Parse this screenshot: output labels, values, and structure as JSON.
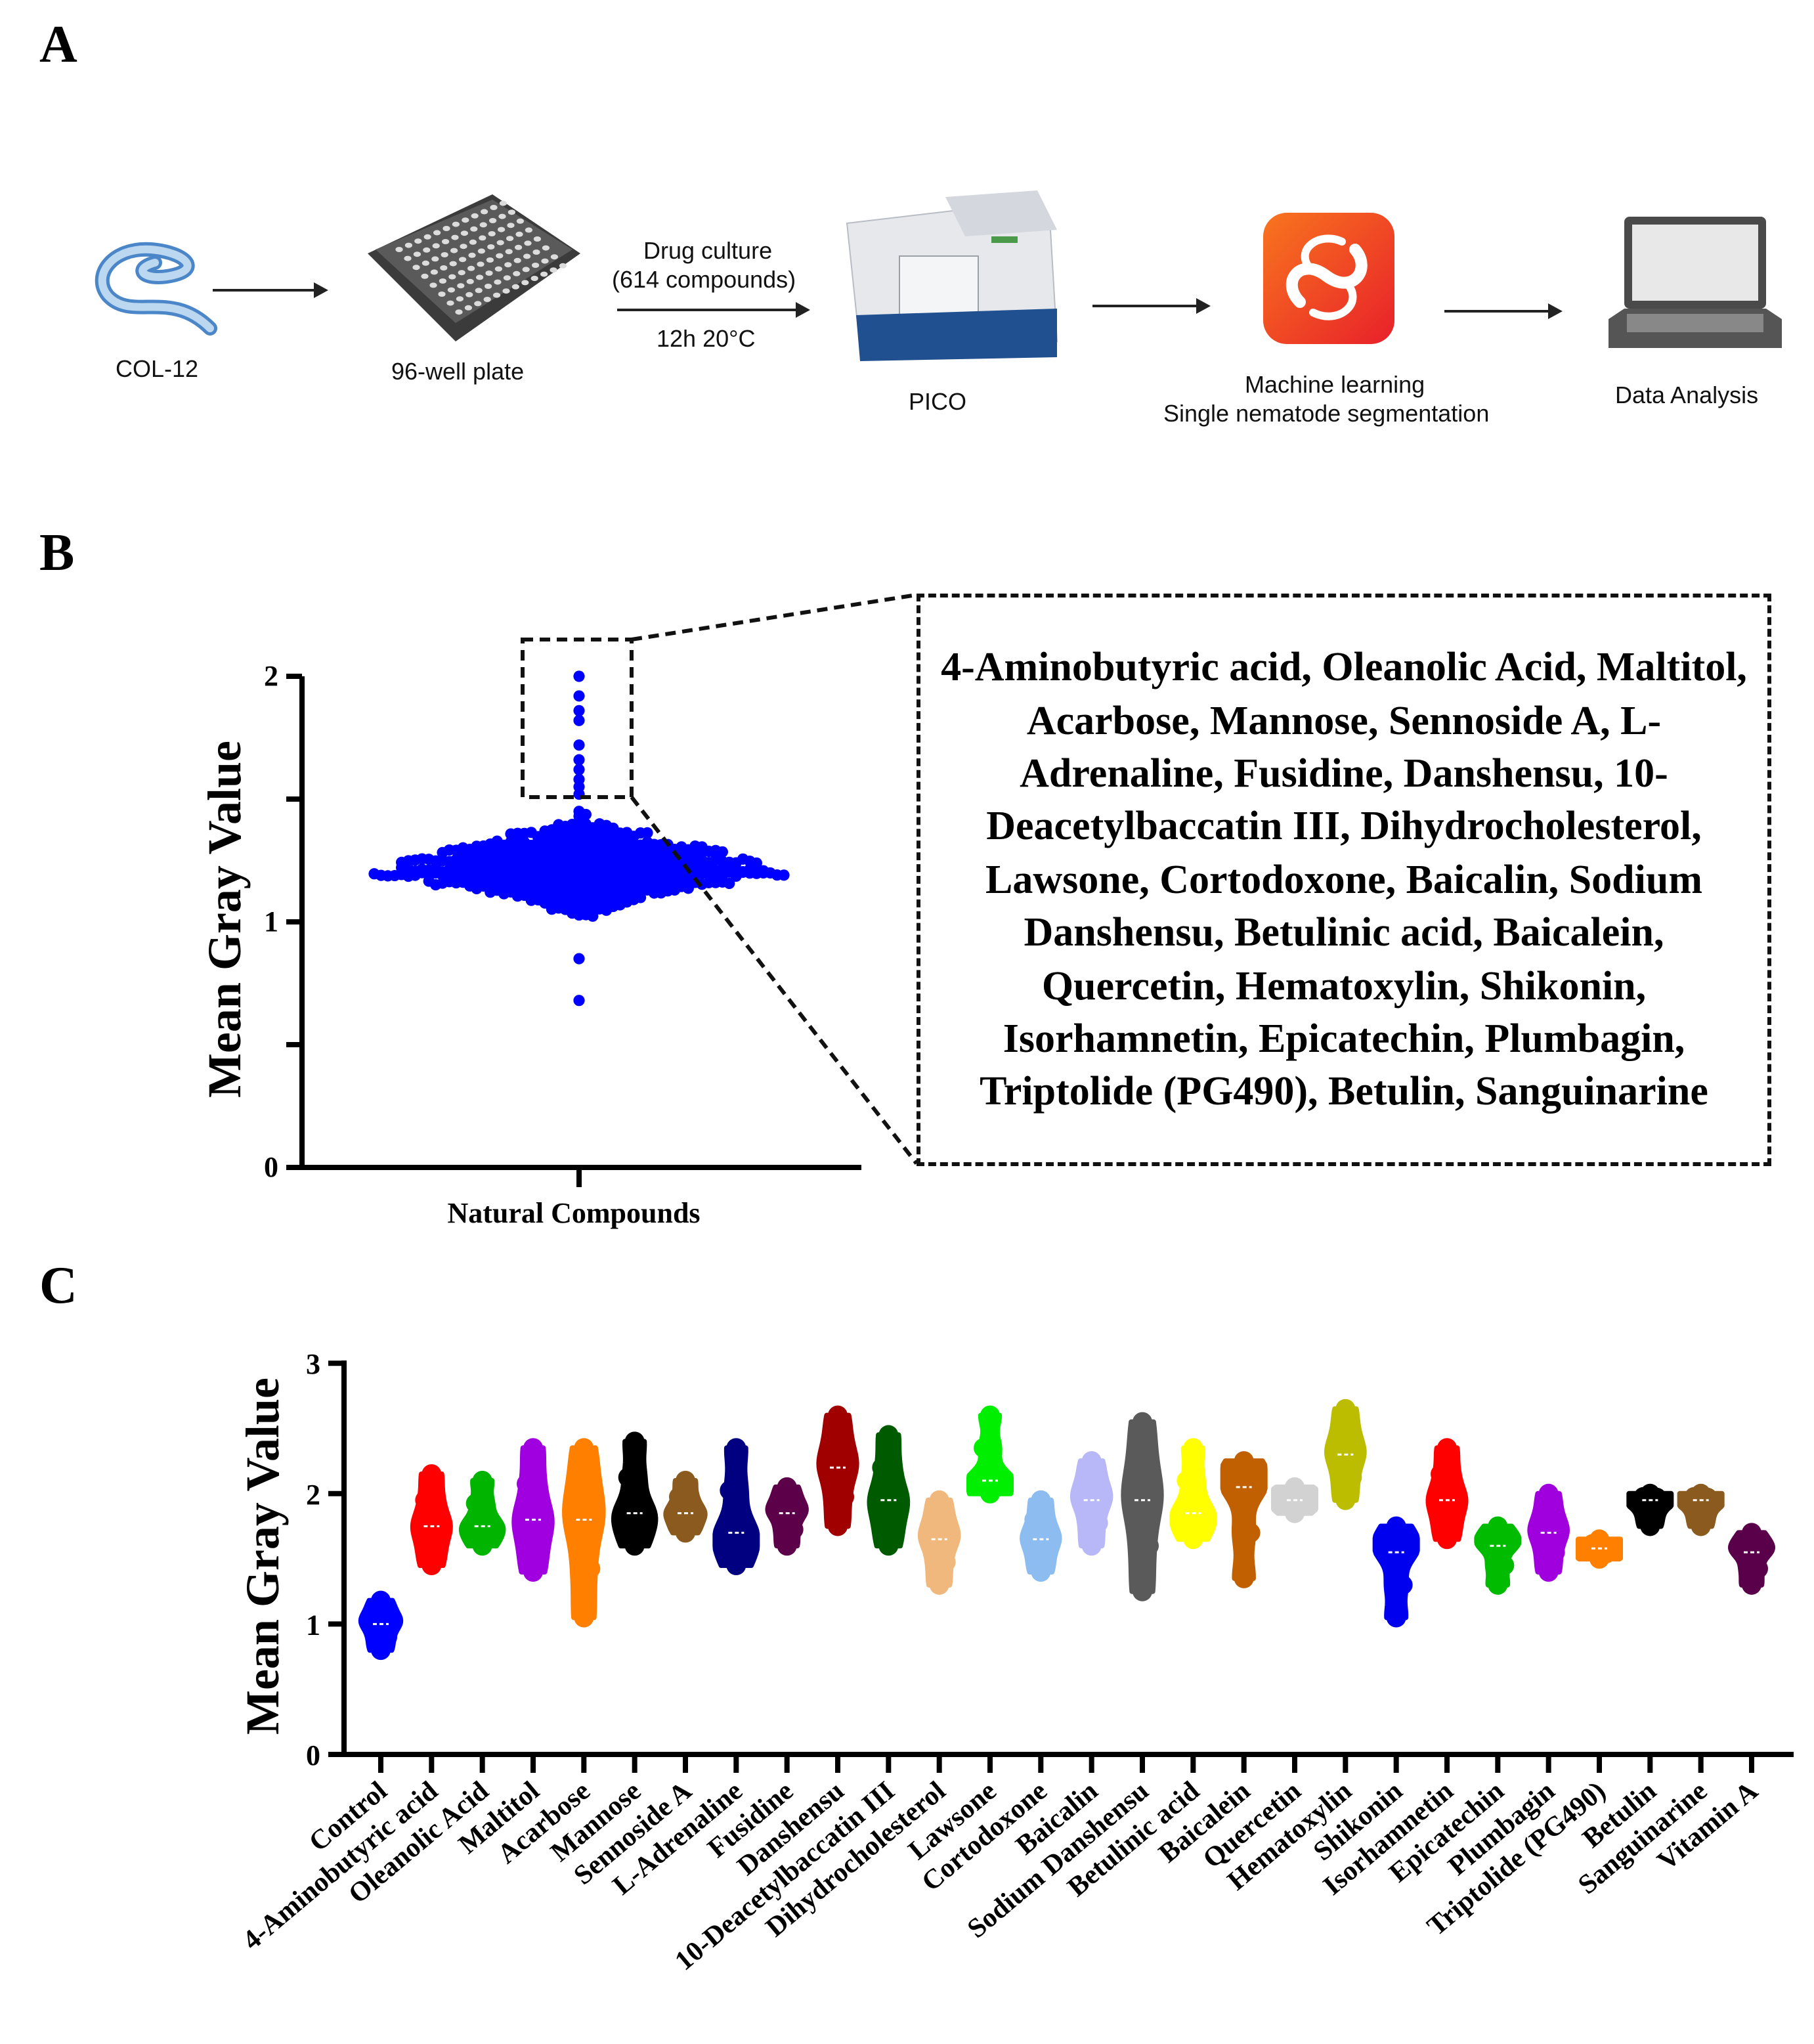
{
  "panels": {
    "a": "A",
    "b": "B",
    "c": "C"
  },
  "workflow": {
    "steps": [
      {
        "label": "COL-12",
        "icon": "nematode-icon"
      },
      {
        "label": "96-well plate",
        "icon": "well-plate-icon"
      },
      {
        "label": "PICO",
        "icon": "imaging-instrument-icon"
      },
      {
        "label1": "Machine learning",
        "label2": "Single nematode segmentation",
        "icon": "machine-learning-app-icon"
      },
      {
        "label": "Data Analysis",
        "icon": "laptop-icon"
      }
    ],
    "drug_culture_line1": "Drug culture",
    "drug_culture_line2": "(614 compounds)",
    "conditions": "12h 20°C"
  },
  "hits_box": {
    "text": "4-Aminobutyric acid, Oleanolic Acid, Maltitol, Acarbose, Mannose, Sennoside A, L-Adrenaline, Fusidine, Danshensu, 10-Deacetylbaccatin III, Dihydrocholesterol, Lawsone, Cortodoxone, Baicalin, Sodium Danshensu, Betulinic acid, Baicalein, Quercetin, Hematoxylin, Shikonin, Isorhamnetin, Epicatechin, Plumbagin, Triptolide (PG490), Betulin, Sanguinarine"
  },
  "chart_data": [
    {
      "type": "scatter",
      "subtype": "swarm",
      "ylabel": "Mean Gray Value",
      "xlabel": "Natural Compounds",
      "ylim": [
        0,
        2
      ],
      "yticks": [
        "0",
        "1",
        "2"
      ],
      "n": 614,
      "min": 0.68,
      "max": 2.0,
      "median": 1.22,
      "highlight_threshold": 1.5,
      "color": "#0000ff"
    },
    {
      "type": "violin",
      "ylabel": "Mean Gray Value",
      "ylim": [
        0,
        3
      ],
      "yticks": [
        "0",
        "1",
        "2",
        "3"
      ],
      "categories": [
        "Control",
        "4-Aminobutyric acid",
        "Oleanolic Acid",
        "Maltitol",
        "Acarbose",
        "Mannose",
        "Sennoside A",
        "L-Adrenaline",
        "Fusidine",
        "Danshensu",
        "10-Deacetylbaccatin III",
        "Dihydrocholesterol",
        "Lawsone",
        "Cortodoxone",
        "Baicalin",
        "Sodium Danshensu",
        "Betulinic acid",
        "Baicalein",
        "Quercetin",
        "Hematoxylin",
        "Shikonin",
        "Isorhamnetin",
        "Epicatechin",
        "Plumbagin",
        "Triptolide (PG490)",
        "Betulin",
        "Sanguinarine",
        "Vitamin A"
      ],
      "min": [
        0.8,
        1.45,
        1.6,
        1.4,
        1.05,
        1.6,
        1.7,
        1.45,
        1.6,
        1.75,
        1.6,
        1.3,
        2.0,
        1.4,
        1.6,
        1.25,
        1.65,
        1.35,
        1.85,
        1.95,
        1.05,
        1.65,
        1.3,
        1.4,
        1.5,
        1.75,
        1.75,
        1.3
      ],
      "median": [
        1.0,
        1.75,
        1.75,
        1.8,
        1.8,
        1.85,
        1.85,
        1.7,
        1.85,
        2.2,
        1.95,
        1.65,
        2.1,
        1.65,
        1.95,
        1.95,
        1.85,
        2.05,
        1.95,
        2.3,
        1.55,
        1.95,
        1.6,
        1.7,
        1.58,
        1.95,
        1.95,
        1.55
      ],
      "max": [
        1.18,
        2.15,
        2.1,
        2.35,
        2.35,
        2.4,
        2.1,
        2.35,
        2.05,
        2.6,
        2.45,
        1.95,
        2.6,
        1.95,
        2.25,
        2.55,
        2.35,
        2.25,
        2.05,
        2.65,
        1.75,
        2.35,
        1.75,
        2.0,
        1.65,
        2.0,
        2.0,
        1.7
      ],
      "colors": [
        "#0000ff",
        "#ff0000",
        "#00b400",
        "#a000e0",
        "#ff8000",
        "#000000",
        "#8b5a1e",
        "#000080",
        "#5c004a",
        "#a00000",
        "#005a00",
        "#f0b87c",
        "#00ee00",
        "#8cbcf0",
        "#b8b8f8",
        "#5a5a5a",
        "#ffff00",
        "#c06000",
        "#d2d2d2",
        "#bcbc00",
        "#0000ee",
        "#ff0000",
        "#00bb00",
        "#a000dd",
        "#ff8000",
        "#000000",
        "#8b5a1e",
        "#5a004a"
      ]
    }
  ]
}
